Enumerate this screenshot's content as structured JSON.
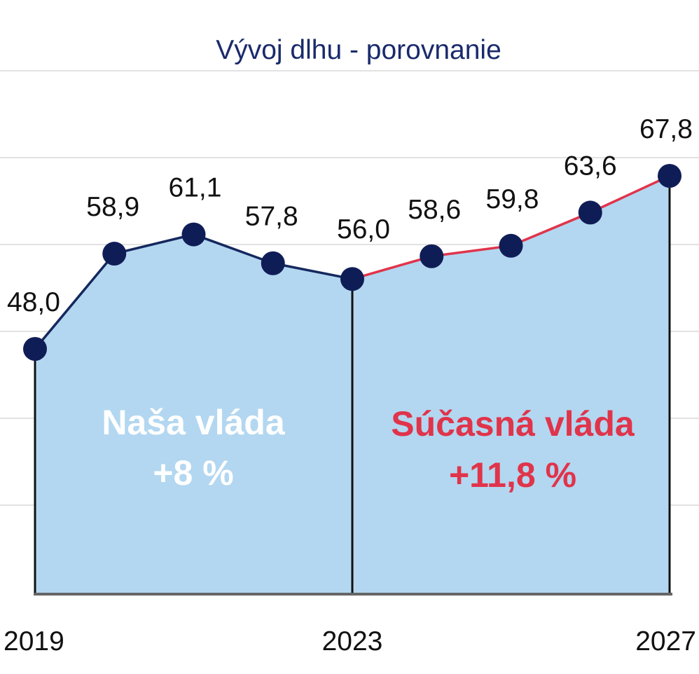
{
  "chart_data": {
    "type": "area",
    "title": "Vývoj dlhu - porovnanie",
    "x": [
      2019,
      2020,
      2021,
      2022,
      2023,
      2024,
      2025,
      2026,
      2027
    ],
    "values": [
      48.0,
      58.9,
      61.1,
      57.8,
      56.0,
      58.6,
      59.8,
      63.6,
      67.8
    ],
    "value_labels": [
      "48,0",
      "58,9",
      "61,1",
      "57,8",
      "56,0",
      "58,6",
      "59,8",
      "63,6",
      "67,8"
    ],
    "x_tick_labels": [
      {
        "x": 2019,
        "label": "2019"
      },
      {
        "x": 2023,
        "label": "2023"
      },
      {
        "x": 2027,
        "label": "2027"
      }
    ],
    "segments": [
      {
        "from": 2019,
        "to": 2023,
        "line_color": "#15285e"
      },
      {
        "from": 2023,
        "to": 2027,
        "line_color": "#e0344b"
      }
    ],
    "annotations": [
      {
        "lines": [
          "Naša vláda",
          "+8 %"
        ],
        "color": "#ffffff"
      },
      {
        "lines": [
          "Súčasná vláda",
          "+11,8 %"
        ],
        "color": "#e0344b"
      }
    ],
    "colors": {
      "area_fill": "#b3d7f0",
      "marker": "#0f1d57",
      "title": "#1a2a6c",
      "gridline": "#d9d9d9",
      "axis": "#666666"
    },
    "grid": true,
    "legend": "none"
  }
}
